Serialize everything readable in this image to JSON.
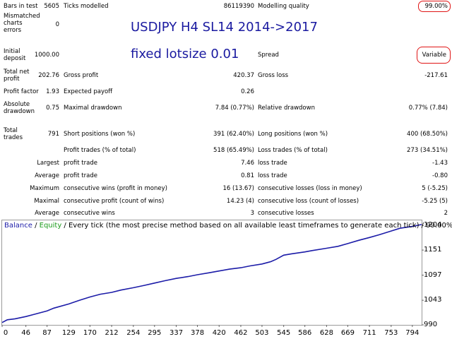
{
  "report": {
    "bars_in_test_label": "Bars in test",
    "bars_in_test_value": "5605",
    "ticks_modelled_label": "Ticks modelled",
    "ticks_modelled_value": "86119390",
    "modelling_quality_label": "Modelling quality",
    "modelling_quality_value": "99.00%",
    "mismatched_label_1": "Mismatched",
    "mismatched_label_2": "charts",
    "mismatched_label_3": "errors",
    "mismatched_value": "0",
    "title_line_1": "USDJPY H4 SL14 2014->2017",
    "title_line_2": "fixed lotsize 0.01",
    "initial_deposit_label_1": "Initial",
    "initial_deposit_label_2": "deposit",
    "initial_deposit_value": "1000.00",
    "spread_label": "Spread",
    "spread_value": "Variable",
    "total_net_profit_label_1": "Total net",
    "total_net_profit_label_2": "profit",
    "total_net_profit_value": "202.76",
    "gross_profit_label": "Gross profit",
    "gross_profit_value": "420.37",
    "gross_loss_label": "Gross loss",
    "gross_loss_value": "-217.61",
    "profit_factor_label": "Profit factor",
    "profit_factor_value": "1.93",
    "expected_payoff_label": "Expected payoff",
    "expected_payoff_value": "0.26",
    "absolute_drawdown_label_1": "Absolute",
    "absolute_drawdown_label_2": "drawdown",
    "absolute_drawdown_value": "0.75",
    "maximal_drawdown_label": "Maximal drawdown",
    "maximal_drawdown_value": "7.84 (0.77%)",
    "relative_drawdown_label": "Relative drawdown",
    "relative_drawdown_value": "0.77% (7.84)",
    "total_trades_label_1": "Total",
    "total_trades_label_2": "trades",
    "total_trades_value": "791",
    "short_positions_label": "Short positions (won %)",
    "short_positions_value": "391 (62.40%)",
    "long_positions_label": "Long positions (won %)",
    "long_positions_value": "400 (68.50%)",
    "profit_trades_label": "Profit trades (% of total)",
    "profit_trades_value": "518 (65.49%)",
    "loss_trades_label": "Loss trades (% of total)",
    "loss_trades_value": "273 (34.51%)",
    "largest_label": "Largest",
    "largest_profit_label": "profit trade",
    "largest_profit_value": "7.46",
    "largest_loss_label": "loss trade",
    "largest_loss_value": "-1.43",
    "average_label": "Average",
    "average_profit_label": "profit trade",
    "average_profit_value": "0.81",
    "average_loss_label": "loss trade",
    "average_loss_value": "-0.80",
    "maximum_label": "Maximum",
    "max_cons_wins_label": "consecutive wins (profit in money)",
    "max_cons_wins_value": "16 (13.67)",
    "max_cons_losses_label": "consecutive losses (loss in money)",
    "max_cons_losses_value": "5 (-5.25)",
    "maximal_label": "Maximal",
    "maximal_cons_profit_label": "consecutive profit (count of wins)",
    "maximal_cons_profit_value": "14.23 (4)",
    "maximal_cons_loss_label": "consecutive loss (count of losses)",
    "maximal_cons_loss_value": "-5.25 (5)",
    "average2_label": "Average",
    "avg_cons_wins_label": "consecutive wins",
    "avg_cons_wins_value": "3",
    "avg_cons_losses_label": "consecutive losses",
    "avg_cons_losses_value": "2"
  },
  "legend": {
    "balance": "Balance",
    "sep1": " / ",
    "equity": "Equity",
    "rest": " / Every tick (the most precise method based on all available least timeframes to generate each tick) / 99.00%"
  },
  "colors": {
    "balance_line": "#1c1ca8",
    "equity_line": "#1a9a1a",
    "highlight_oval": "#e01515",
    "title_text": "#1a1aa0"
  },
  "chart_data": {
    "type": "line",
    "title": "",
    "xlabel": "",
    "ylabel": "",
    "x_ticks": [
      "0",
      "46",
      "87",
      "129",
      "170",
      "212",
      "254",
      "295",
      "337",
      "378",
      "420",
      "462",
      "503",
      "545",
      "586",
      "628",
      "669",
      "711",
      "753",
      "794"
    ],
    "y_ticks": [
      "1204",
      "1151",
      "1097",
      "1043",
      "990"
    ],
    "xlim": [
      0,
      812
    ],
    "ylim": [
      990,
      1215
    ],
    "grid": false,
    "series": [
      {
        "name": "Balance",
        "x": [
          0,
          10,
          25,
          46,
          60,
          87,
          100,
          129,
          150,
          170,
          190,
          212,
          230,
          254,
          275,
          295,
          315,
          337,
          360,
          378,
          400,
          420,
          440,
          462,
          480,
          503,
          520,
          530,
          545,
          560,
          586,
          600,
          628,
          650,
          669,
          690,
          711,
          730,
          753,
          770,
          794,
          812
        ],
        "y": [
          995,
          1001,
          1003,
          1008,
          1012,
          1020,
          1026,
          1035,
          1043,
          1050,
          1056,
          1060,
          1065,
          1070,
          1075,
          1080,
          1085,
          1090,
          1094,
          1098,
          1102,
          1106,
          1110,
          1113,
          1117,
          1121,
          1126,
          1131,
          1140,
          1143,
          1147,
          1150,
          1155,
          1159,
          1165,
          1172,
          1178,
          1184,
          1192,
          1198,
          1202,
          1206
        ]
      }
    ]
  }
}
